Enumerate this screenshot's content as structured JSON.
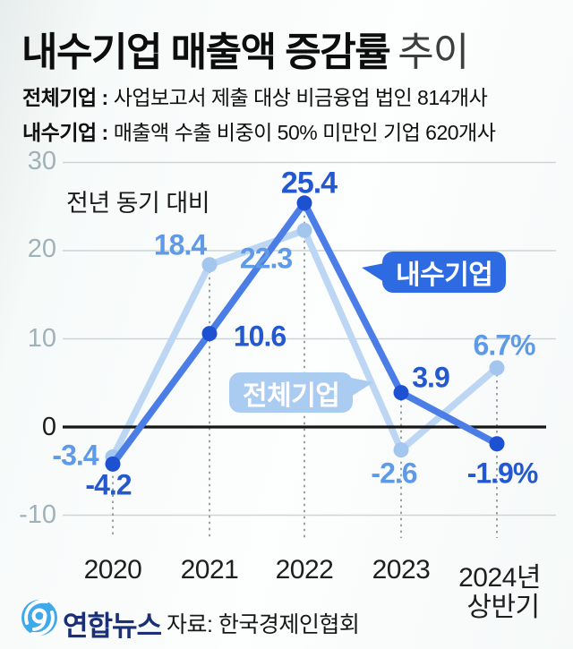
{
  "header": {
    "title": "내수기업 매출액 증감률",
    "title_suffix": "추이",
    "definitions": [
      {
        "term": "전체기업 :",
        "desc": "사업보고서 제출 대상 비금융업 법인 814개사"
      },
      {
        "term": "내수기업 :",
        "desc": "매출액 수출 비중이 50% 미만인 기업 620개사"
      }
    ]
  },
  "chart": {
    "note": "전년 동기 대비",
    "ytick_labels": [
      "30",
      "20",
      "10",
      "0",
      "-10"
    ],
    "xtick_labels": [
      "2020",
      "2021",
      "2022",
      "2023"
    ],
    "xtick_last_line1": "2024년",
    "xtick_last_line2": "상반기",
    "legend_domestic": "내수기업",
    "legend_all": "전체기업",
    "point_labels": {
      "all_2020": "-3.4",
      "dom_2020": "-4.2",
      "all_2021": "18.4",
      "dom_2021": "10.6",
      "dom_2022": "25.4",
      "all_2022": "22.3",
      "dom_2023": "3.9",
      "all_2023": "-2.6",
      "all_2024": "6.7%",
      "dom_2024": "-1.9%"
    }
  },
  "chart_data": {
    "type": "line",
    "title": "내수기업 매출액 증감률 추이",
    "note": "전년 동기 대비",
    "categories": [
      "2020",
      "2021",
      "2022",
      "2023",
      "2024년 상반기"
    ],
    "series": [
      {
        "key": "all",
        "name": "전체기업",
        "values": [
          -3.4,
          18.4,
          22.3,
          -2.6,
          6.7
        ],
        "line_color": "#bdd6f3",
        "marker_color": "#a3c6ee",
        "label_color": "#5f9ae6"
      },
      {
        "key": "domestic",
        "name": "내수기업",
        "values": [
          -4.2,
          10.6,
          25.4,
          3.9,
          -1.9
        ],
        "line_color": "#4b7de6",
        "marker_color": "#1e50d2",
        "label_color": "#2458ce"
      }
    ],
    "ylim": [
      -10,
      30
    ],
    "yticks": [
      30,
      20,
      10,
      0,
      -10
    ],
    "grid": true,
    "zero_line": true,
    "legend_position": "bubbles-on-plot",
    "value_suffix_last_point": "%"
  },
  "footer": {
    "logo_text": "연합뉴스",
    "source": "자료: 한국경제인협회"
  },
  "colors": {
    "domestic_accent": "#2e6be3",
    "all_accent": "#aaccf1",
    "axis_label": "#9fb2b8",
    "grid": "#cbd5d7",
    "zero_line": "#161616",
    "dotted_guide": "#8e999c",
    "logo_blue": "#3fa9e9",
    "logo_navy": "#1a2f78"
  }
}
